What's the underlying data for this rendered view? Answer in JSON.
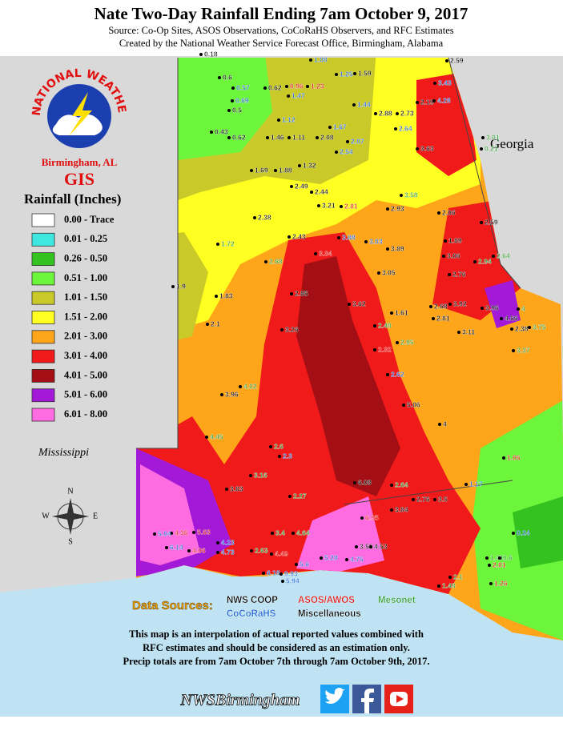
{
  "header": {
    "title": "Nate Two-Day Rainfall Ending 7am October 9, 2017",
    "source": "Source: Co-Op Sites, ASOS Observations, CoCoRaHS Observers, and RFC Estimates",
    "created_by": "Created by the National Weather Service Forecast Office, Birmingham, Alabama"
  },
  "logo": {
    "ring": "NATIONAL WEATHER SERVICE",
    "office": "Birmingham, AL",
    "gis": "GIS"
  },
  "legend": {
    "title": "Rainfall (Inches)",
    "items": [
      {
        "label": "0.00 - Trace",
        "color": "#ffffff"
      },
      {
        "label": "0.01 - 0.25",
        "color": "#3ee8e0"
      },
      {
        "label": "0.26 - 0.50",
        "color": "#33c21f"
      },
      {
        "label": "0.51 - 1.00",
        "color": "#6cf53a"
      },
      {
        "label": "1.01 - 1.50",
        "color": "#c9c92a"
      },
      {
        "label": "1.51 - 2.00",
        "color": "#ffff22"
      },
      {
        "label": "2.01 - 3.00",
        "color": "#ffa51a"
      },
      {
        "label": "3.01 - 4.00",
        "color": "#f01a1a"
      },
      {
        "label": "4.01 - 5.00",
        "color": "#a30f14"
      },
      {
        "label": "5.01 - 6.00",
        "color": "#a21ad8"
      },
      {
        "label": "6.01 - 8.00",
        "color": "#ff6be0"
      }
    ]
  },
  "state_labels": [
    "Georgia",
    "Mississippi"
  ],
  "compass": [
    "N",
    "S",
    "W",
    "E"
  ],
  "data_sources": {
    "label": "Data Sources:",
    "items": [
      {
        "name": "NWS COOP",
        "color": "#000000"
      },
      {
        "name": "ASOS/AWOS",
        "color": "#e01010"
      },
      {
        "name": "Mesonet",
        "color": "#2a9a2a"
      },
      {
        "name": "CoCoRaHS",
        "color": "#1a5fd0"
      },
      {
        "name": "Miscellaneous",
        "color": "#000000"
      }
    ]
  },
  "disclaimer": [
    "This map is an interpolation of actual reported values combined with",
    "RFC estimates and should be considered as an estimation only.",
    "Precip totals are from 7am October 7th through 7am October 9th, 2017."
  ],
  "footer": "NWSBirmingham",
  "stations": [
    {
      "value": 0.18,
      "color": "#000000"
    },
    {
      "value": 0.6,
      "color": "#000000"
    },
    {
      "value": 0.62,
      "color": "#000000"
    },
    {
      "value": 0.5,
      "color": "#000000"
    },
    {
      "value": 0.43,
      "color": "#000000"
    },
    {
      "value": 0.62,
      "color": "#000000"
    },
    {
      "value": 1.46,
      "color": "#000000"
    },
    {
      "value": 1.11,
      "color": "#000000"
    },
    {
      "value": 2.08,
      "color": "#000000"
    },
    {
      "value": 1.69,
      "color": "#000000"
    },
    {
      "value": 1.88,
      "color": "#000000"
    },
    {
      "value": 1.32,
      "color": "#000000"
    },
    {
      "value": 2.49,
      "color": "#000000"
    },
    {
      "value": 2.44,
      "color": "#000000"
    },
    {
      "value": 2.38,
      "color": "#000000"
    },
    {
      "value": 3.21,
      "color": "#000000"
    },
    {
      "value": 2.43,
      "color": "#000000"
    },
    {
      "value": 1.59,
      "color": "#000000"
    },
    {
      "value": 2.88,
      "color": "#000000"
    },
    {
      "value": 2.73,
      "color": "#000000"
    },
    {
      "value": 2.59,
      "color": "#000000"
    },
    {
      "value": 2.19,
      "color": "#000000"
    },
    {
      "value": 3.63,
      "color": "#000000"
    },
    {
      "value": 2.93,
      "color": "#000000"
    },
    {
      "value": 2.06,
      "color": "#000000"
    },
    {
      "value": 2.59,
      "color": "#000000"
    },
    {
      "value": 1.89,
      "color": "#000000"
    },
    {
      "value": 3.06,
      "color": "#000000"
    },
    {
      "value": 2.76,
      "color": "#000000"
    },
    {
      "value": 3.89,
      "color": "#000000"
    },
    {
      "value": 3.05,
      "color": "#000000"
    },
    {
      "value": 1.61,
      "color": "#000000"
    },
    {
      "value": 3.62,
      "color": "#000000"
    },
    {
      "value": 3.26,
      "color": "#000000"
    },
    {
      "value": 2.85,
      "color": "#000000"
    },
    {
      "value": 1.83,
      "color": "#000000"
    },
    {
      "value": 1.9,
      "color": "#000000"
    },
    {
      "value": 2.1,
      "color": "#000000"
    },
    {
      "value": 3.96,
      "color": "#000000"
    },
    {
      "value": 5.06,
      "color": "#000000"
    },
    {
      "value": 4,
      "color": "#000000"
    },
    {
      "value": 6.08,
      "color": "#000000"
    },
    {
      "value": 2.76,
      "color": "#000000"
    },
    {
      "value": 3.5,
      "color": "#000000"
    },
    {
      "value": 3.84,
      "color": "#000000"
    },
    {
      "value": 3.55,
      "color": "#000000"
    },
    {
      "value": 4.53,
      "color": "#000000"
    },
    {
      "value": 3.11,
      "color": "#000000"
    },
    {
      "value": 3.92,
      "color": "#000000"
    },
    {
      "value": 2.68,
      "color": "#000000"
    },
    {
      "value": 2.81,
      "color": "#000000"
    },
    {
      "value": 3.96,
      "color": "#000000"
    },
    {
      "value": 4.66,
      "color": "#000000"
    },
    {
      "value": 2.38,
      "color": "#000000"
    },
    {
      "value": 3.83,
      "color": "#000000"
    },
    {
      "value": 0.96,
      "color": "#e01010"
    },
    {
      "value": 1.23,
      "color": "#e01010"
    },
    {
      "value": 3.34,
      "color": "#e01010"
    },
    {
      "value": 2.81,
      "color": "#e01010"
    },
    {
      "value": 2.32,
      "color": "#e01010"
    },
    {
      "value": 5.63,
      "color": "#e01010"
    },
    {
      "value": 4.36,
      "color": "#e01010"
    },
    {
      "value": 4.06,
      "color": "#e01010"
    },
    {
      "value": 6.95,
      "color": "#e01010"
    },
    {
      "value": 4.49,
      "color": "#e01010"
    },
    {
      "value": 1.06,
      "color": "#e01010"
    },
    {
      "value": 2.01,
      "color": "#e01010"
    },
    {
      "value": 1.26,
      "color": "#e01010"
    },
    {
      "value": 1.08,
      "color": "#1a5fd0"
    },
    {
      "value": 1.25,
      "color": "#1a5fd0"
    },
    {
      "value": 0.57,
      "color": "#1a5fd0"
    },
    {
      "value": 0.69,
      "color": "#1a5fd0"
    },
    {
      "value": 1.47,
      "color": "#1a5fd0"
    },
    {
      "value": 1.12,
      "color": "#1a5fd0"
    },
    {
      "value": 1.67,
      "color": "#1a5fd0"
    },
    {
      "value": 2.07,
      "color": "#1a5fd0"
    },
    {
      "value": 2.54,
      "color": "#1a5fd0"
    },
    {
      "value": 1.44,
      "color": "#1a5fd0"
    },
    {
      "value": 2.64,
      "color": "#1a5fd0"
    },
    {
      "value": 3.88,
      "color": "#1a5fd0"
    },
    {
      "value": 3.03,
      "color": "#1a5fd0"
    },
    {
      "value": 2.62,
      "color": "#1a5fd0"
    },
    {
      "value": 2.3,
      "color": "#1a5fd0"
    },
    {
      "value": 5.04,
      "color": "#1a5fd0"
    },
    {
      "value": 6.14,
      "color": "#1a5fd0"
    },
    {
      "value": 4.23,
      "color": "#1a5fd0"
    },
    {
      "value": 4.73,
      "color": "#1a5fd0"
    },
    {
      "value": 5.94,
      "color": "#1a5fd0"
    },
    {
      "value": 6.18,
      "color": "#1a5fd0"
    },
    {
      "value": 9.93,
      "color": "#1a5fd0"
    },
    {
      "value": 5.6,
      "color": "#1a5fd0"
    },
    {
      "value": 3.43,
      "color": "#1a5fd0"
    },
    {
      "value": 4.28,
      "color": "#1a5fd0"
    },
    {
      "value": 1.17,
      "color": "#1a5fd0"
    },
    {
      "value": 0.24,
      "color": "#1a5fd0"
    },
    {
      "value": 5.28,
      "color": "#1a5fd0"
    },
    {
      "value": 4.75,
      "color": "#1a5fd0"
    },
    {
      "value": 3.01,
      "color": "#2a9a2a"
    },
    {
      "value": 0.21,
      "color": "#2a9a2a"
    },
    {
      "value": 3.75,
      "color": "#2a9a2a"
    },
    {
      "value": 4,
      "color": "#2a9a2a"
    },
    {
      "value": 1.72,
      "color": "#2a9a2a"
    },
    {
      "value": 2.68,
      "color": "#2a9a2a"
    },
    {
      "value": 4.02,
      "color": "#2a9a2a"
    },
    {
      "value": 4.45,
      "color": "#2a9a2a"
    },
    {
      "value": 2.6,
      "color": "#2a9a2a"
    },
    {
      "value": 3.16,
      "color": "#2a9a2a"
    },
    {
      "value": 2.27,
      "color": "#2a9a2a"
    },
    {
      "value": 2.63,
      "color": "#2a9a2a"
    },
    {
      "value": 4.64,
      "color": "#2a9a2a"
    },
    {
      "value": 3.4,
      "color": "#2a9a2a"
    },
    {
      "value": 2.48,
      "color": "#2a9a2a"
    },
    {
      "value": 2.95,
      "color": "#2a9a2a"
    },
    {
      "value": 2.94,
      "color": "#2a9a2a"
    },
    {
      "value": 2.64,
      "color": "#2a9a2a"
    },
    {
      "value": 3.58,
      "color": "#2a9a2a"
    },
    {
      "value": 1.41,
      "color": "#2a9a2a"
    },
    {
      "value": 0.6,
      "color": "#2a9a2a"
    },
    {
      "value": 2.64,
      "color": "#2a9a2a"
    },
    {
      "value": 1.48,
      "color": "#2a9a2a"
    },
    {
      "value": 2.1,
      "color": "#2a9a2a"
    },
    {
      "value": 3.37,
      "color": "#2a9a2a"
    }
  ]
}
